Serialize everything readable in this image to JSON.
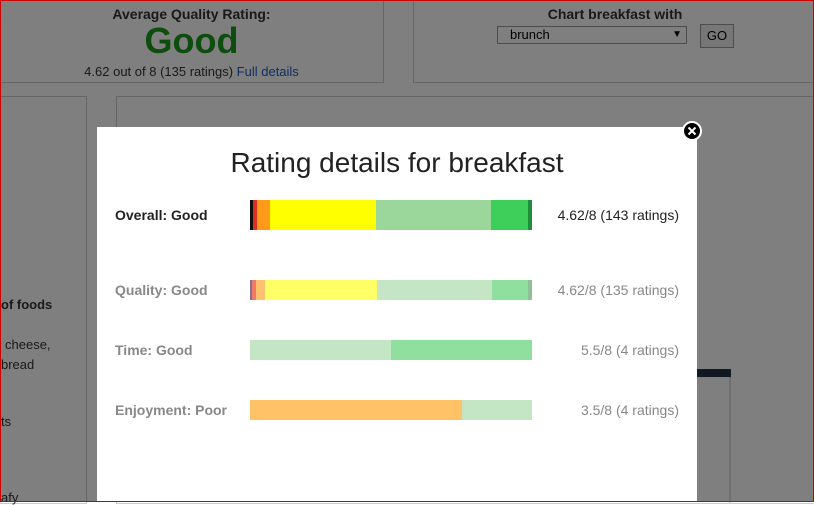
{
  "background": {
    "rating_heading": "Average Quality Rating:",
    "rating_word": "Good",
    "rating_summary": "4.62 out of 8 (135 ratings)",
    "full_details_link": "Full details",
    "chart_heading": "Chart breakfast with",
    "select_value": "brunch",
    "go_button": "GO",
    "sidebar": [
      "of foods",
      "cheese,",
      "bread",
      "ts",
      "afy"
    ]
  },
  "modal": {
    "title": "Rating details for breakfast",
    "rows": [
      {
        "label": "Overall: Good",
        "summary": "4.62/8 (143 ratings)",
        "emphasis": true,
        "segments": [
          {
            "value": 1.1,
            "color": "#111111"
          },
          {
            "value": 1.4,
            "color": "#e03020"
          },
          {
            "value": 4.6,
            "color": "#ff9a1a"
          },
          {
            "value": 37.6,
            "color": "#ffff00"
          },
          {
            "value": 40.8,
            "color": "#9bd69b"
          },
          {
            "value": 13.1,
            "color": "#3ecf5a"
          },
          {
            "value": 1.4,
            "color": "#1f8f3a"
          }
        ]
      },
      {
        "label": "Quality: Good",
        "summary": "4.62/8 (135 ratings)",
        "emphasis": false,
        "segments": [
          {
            "value": 0.7,
            "color": "#8c6f8c"
          },
          {
            "value": 1.4,
            "color": "#f07a6a"
          },
          {
            "value": 3.2,
            "color": "#ffc070"
          },
          {
            "value": 39.7,
            "color": "#ffff66"
          },
          {
            "value": 40.8,
            "color": "#c4e6c4"
          },
          {
            "value": 12.8,
            "color": "#8fe09f"
          },
          {
            "value": 1.4,
            "color": "#8fbf96"
          }
        ]
      },
      {
        "label": "Time: Good",
        "summary": "5.5/8 (4 ratings)",
        "emphasis": false,
        "segments": [
          {
            "value": 50,
            "color": "#c4e6c4"
          },
          {
            "value": 50,
            "color": "#8fe09f"
          }
        ]
      },
      {
        "label": "Enjoyment: Poor",
        "summary": "3.5/8 (4 ratings)",
        "emphasis": false,
        "segments": [
          {
            "value": 75,
            "color": "#ffc266"
          },
          {
            "value": 25,
            "color": "#c4e6c4"
          }
        ]
      }
    ]
  }
}
